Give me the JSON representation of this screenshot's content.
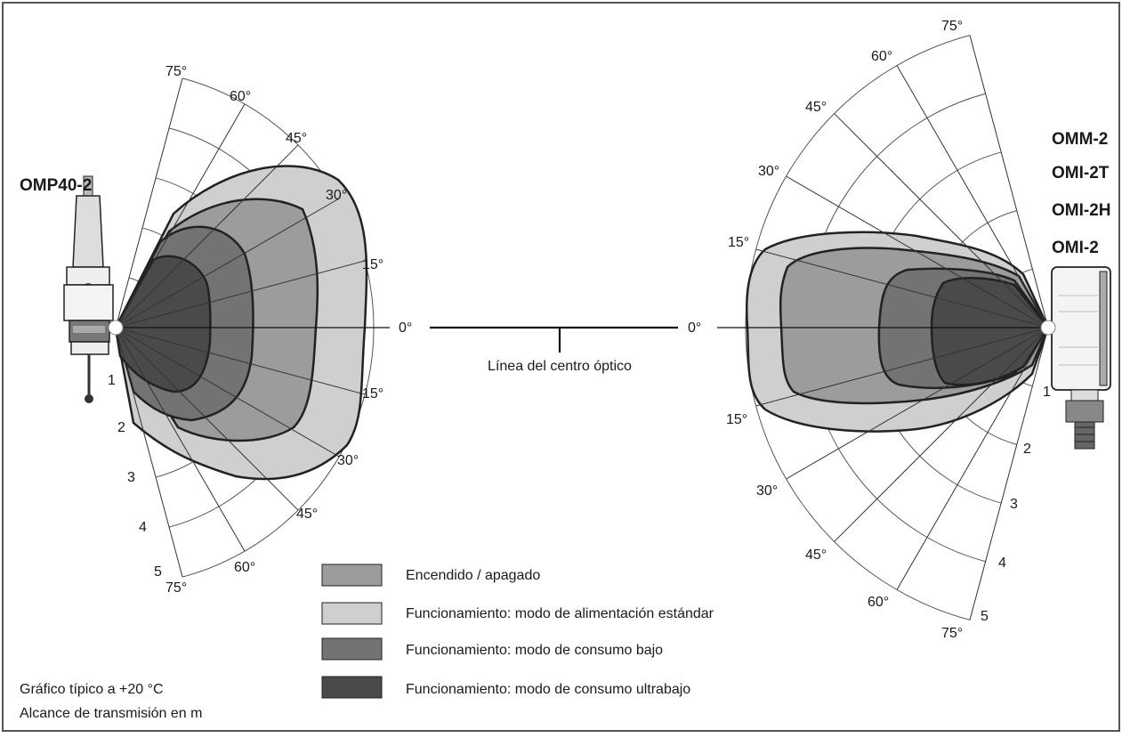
{
  "transmitter": {
    "name": "OMP40-2"
  },
  "receivers": [
    "OMM-2",
    "OMI-2T",
    "OMI-2H",
    "OMI-2"
  ],
  "optical_centre_label": "Línea del centro óptico",
  "angle_labels": {
    "zero": "0°",
    "left_upper": [
      "15°",
      "30°",
      "45°",
      "60°",
      "75°"
    ],
    "left_lower": [
      "15°",
      "30°",
      "45°",
      "60°",
      "75°"
    ],
    "right_upper": [
      "15°",
      "30°",
      "45°",
      "60°",
      "75°"
    ],
    "right_lower": [
      "15°",
      "30°",
      "45°",
      "60°",
      "75°"
    ]
  },
  "range_labels": [
    "1",
    "2",
    "3",
    "4",
    "5"
  ],
  "legend": [
    {
      "label": "Encendido / apagado",
      "color": "#9c9c9c"
    },
    {
      "label": "Funcionamiento: modo de alimentación estándar",
      "color": "#cfcfcf"
    },
    {
      "label": "Funcionamiento: modo de consumo bajo",
      "color": "#737373"
    },
    {
      "label": "Funcionamiento: modo de consumo ultrabajo",
      "color": "#4a4a4a"
    }
  ],
  "notes": [
    "Gráfico típico a +20 °C",
    "Alcance de transmisión en m"
  ],
  "colors": {
    "on_off": "#9c9c9c",
    "standard": "#cfcfcf",
    "low": "#737373",
    "ultra_low": "#4a4a4a",
    "frame": "#555555"
  }
}
